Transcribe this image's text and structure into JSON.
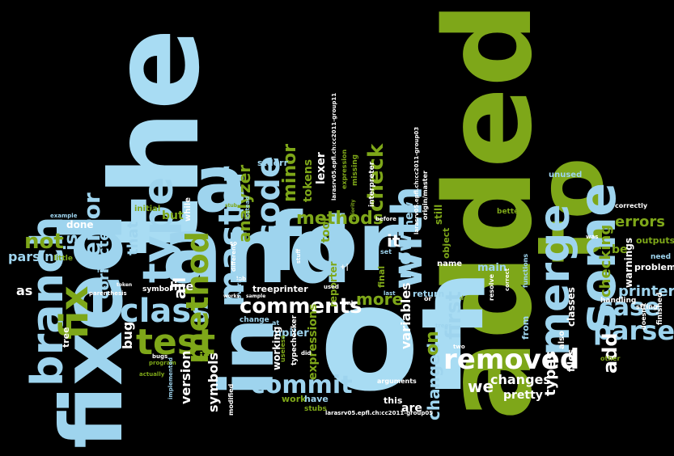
{
  "words": [
    {
      "text": "the",
      "color": "#a8dcf3"
    },
    {
      "text": "added",
      "color": "#7ea719"
    },
    {
      "text": "fixed",
      "color": "#9ed4ee"
    },
    {
      "text": "of",
      "color": "#a8dcf3"
    },
    {
      "text": "and",
      "color": "#9ed4ee"
    },
    {
      "text": "for",
      "color": "#9ed4ee"
    },
    {
      "text": "to",
      "color": "#7ea719"
    },
    {
      "text": "a",
      "color": "#9ed4ee"
    },
    {
      "text": "in",
      "color": "#9ed4ee"
    },
    {
      "text": "some",
      "color": "#9ed4ee"
    },
    {
      "text": "branch",
      "color": "#9ed4ee"
    },
    {
      "text": "merge",
      "color": "#9ed4ee"
    },
    {
      "text": "with",
      "color": "#9ed4ee"
    },
    {
      "text": "type",
      "color": "#9ed4ee"
    },
    {
      "text": "class",
      "color": "#9ed4ee"
    },
    {
      "text": "method",
      "color": "#7ea719"
    },
    {
      "text": "fix",
      "color": "#7ea719"
    },
    {
      "text": "master",
      "color": "#9ed4ee"
    },
    {
      "text": "test",
      "color": "#7ea719"
    },
    {
      "text": "code",
      "color": "#9ed4ee"
    },
    {
      "text": "comments",
      "color": "#ffffff"
    },
    {
      "text": "removed",
      "color": "#ffffff"
    },
    {
      "text": "parser",
      "color": "#9ed4ee"
    },
    {
      "text": "case",
      "color": "#9ed4ee"
    },
    {
      "text": "commit",
      "color": "#9ed4ee"
    },
    {
      "text": "error",
      "color": "#9ed4ee"
    },
    {
      "text": "not",
      "color": "#7ea719"
    },
    {
      "text": "is",
      "color": "#9ed4ee"
    },
    {
      "text": "methods",
      "color": "#7ea719"
    },
    {
      "text": "check",
      "color": "#7ea719"
    },
    {
      "text": "minor",
      "color": "#7ea719"
    },
    {
      "text": "analyzer",
      "color": "#7ea719"
    },
    {
      "text": "first",
      "color": "#9ed4ee"
    },
    {
      "text": "now",
      "color": "#9ed4ee"
    },
    {
      "text": "changed",
      "color": "#9ed4ee"
    },
    {
      "text": "errors",
      "color": "#7ea719"
    },
    {
      "text": "add",
      "color": "#ffffff"
    },
    {
      "text": "checking",
      "color": "#7ea719"
    },
    {
      "text": "more",
      "color": "#7ea719"
    },
    {
      "text": "printer",
      "color": "#9ed4ee"
    },
    {
      "text": "corrected",
      "color": "#9ed4ee"
    },
    {
      "text": "that",
      "color": "#9ed4ee"
    },
    {
      "text": "all",
      "color": "#ffffff"
    },
    {
      "text": "parsing",
      "color": "#9ed4ee"
    },
    {
      "text": "as",
      "color": "#ffffff"
    },
    {
      "text": "bug",
      "color": "#ffffff"
    },
    {
      "text": "version",
      "color": "#ffffff"
    },
    {
      "text": "symbols",
      "color": "#ffffff"
    },
    {
      "text": "line",
      "color": "#ffffff"
    },
    {
      "text": "if",
      "color": "#7ea719"
    },
    {
      "text": "on",
      "color": "#7ea719"
    },
    {
      "text": "it",
      "color": "#ffffff"
    },
    {
      "text": "we",
      "color": "#ffffff"
    },
    {
      "text": "types",
      "color": "#ffffff"
    },
    {
      "text": "changes",
      "color": "#ffffff"
    },
    {
      "text": "pretty",
      "color": "#ffffff"
    },
    {
      "text": "are",
      "color": "#ffffff"
    },
    {
      "text": "files",
      "color": "#ffffff"
    },
    {
      "text": "classes",
      "color": "#ffffff"
    },
    {
      "text": "be",
      "color": "#7ea719"
    },
    {
      "text": "warnings",
      "color": "#ffffff"
    },
    {
      "text": "problem",
      "color": "#ffffff"
    },
    {
      "text": "outputs",
      "color": "#7ea719"
    },
    {
      "text": "main",
      "color": "#9ed4ee"
    },
    {
      "text": "variables",
      "color": "#ffffff"
    },
    {
      "text": "expressions",
      "color": "#7ea719"
    },
    {
      "text": "lexer",
      "color": "#ffffff"
    },
    {
      "text": "tokens",
      "color": "#7ea719"
    },
    {
      "text": "tool",
      "color": "#7ea719"
    },
    {
      "text": "but",
      "color": "#7ea719"
    },
    {
      "text": "done",
      "color": "#ffffff"
    },
    {
      "text": "stderr",
      "color": "#9ed4ee"
    },
    {
      "text": "initial",
      "color": "#7ea719"
    },
    {
      "text": "compiler",
      "color": "#9ed4ee"
    },
    {
      "text": "treeprinter",
      "color": "#ffffff"
    },
    {
      "text": "working",
      "color": "#ffffff"
    },
    {
      "text": "work",
      "color": "#7ea719"
    },
    {
      "text": "have",
      "color": "#9ed4ee"
    },
    {
      "text": "this",
      "color": "#ffffff"
    },
    {
      "text": "reporter",
      "color": "#7ea719"
    },
    {
      "text": "new",
      "color": "#9ed4ee"
    },
    {
      "text": "still",
      "color": "#7ea719"
    },
    {
      "text": "object",
      "color": "#7ea719"
    },
    {
      "text": "return",
      "color": "#9ed4ee"
    },
    {
      "text": "name",
      "color": "#ffffff"
    },
    {
      "text": "final",
      "color": "#7ea719"
    },
    {
      "text": "tree",
      "color": "#ffffff"
    },
    {
      "text": "little",
      "color": "#7ea719"
    },
    {
      "text": "example",
      "color": "#9ed4ee"
    },
    {
      "text": "while",
      "color": "#ffffff"
    },
    {
      "text": "unused",
      "color": "#9ed4ee"
    },
    {
      "text": "correctly",
      "color": "#ffffff"
    },
    {
      "text": "better",
      "color": "#7ea719"
    },
    {
      "text": "need",
      "color": "#9ed4ee"
    },
    {
      "text": "string",
      "color": "#ffffff"
    },
    {
      "text": "finished",
      "color": "#ffffff"
    },
    {
      "text": "doesn't",
      "color": "#ffffff"
    },
    {
      "text": "handling",
      "color": "#ffffff"
    },
    {
      "text": "also",
      "color": "#ffffff"
    },
    {
      "text": "other",
      "color": "#7ea719"
    },
    {
      "text": "from",
      "color": "#9ed4ee"
    },
    {
      "text": "stubs",
      "color": "#7ea719"
    },
    {
      "text": "interpreter",
      "color": "#ffffff"
    },
    {
      "text": "expression",
      "color": "#7ea719"
    },
    {
      "text": "missing",
      "color": "#7ea719"
    },
    {
      "text": "origin/master",
      "color": "#ffffff"
    },
    {
      "text": "larasrv05.epfl.ch:cc2011-group11",
      "color": "#ffffff"
    },
    {
      "text": "larasrv05.epfl.ch:cc2011-group03",
      "color": "#ffffff"
    },
    {
      "text": "larasrv05.epfl.ch:cc2011-group05",
      "color": "#ffffff"
    },
    {
      "text": "arguments",
      "color": "#ffffff"
    },
    {
      "text": "typechecker",
      "color": "#ffffff"
    },
    {
      "text": "useless",
      "color": "#7ea719"
    },
    {
      "text": "change",
      "color": "#9ed4ee"
    },
    {
      "text": "modified",
      "color": "#ffffff"
    },
    {
      "text": "symbol",
      "color": "#ffffff"
    },
    {
      "text": "program",
      "color": "#7ea719"
    },
    {
      "text": "two",
      "color": "#ffffff"
    },
    {
      "text": "set",
      "color": "#9ed4ee"
    },
    {
      "text": "last",
      "color": "#9ed4ee"
    },
    {
      "text": "resolve",
      "color": "#ffffff"
    },
    {
      "text": "correct",
      "color": "#ffffff"
    },
    {
      "text": "functions",
      "color": "#9ed4ee"
    },
    {
      "text": "was",
      "color": "#ffffff"
    },
    {
      "text": "few",
      "color": "#9ed4ee"
    },
    {
      "text": "an",
      "color": "#9ed4ee"
    },
    {
      "text": "did",
      "color": "#ffffff"
    },
    {
      "text": "at",
      "color": "#9ed4ee"
    },
    {
      "text": "lab",
      "color": "#ffffff"
    },
    {
      "text": "only",
      "color": "#ffffff"
    },
    {
      "text": "don't",
      "color": "#7ea719"
    },
    {
      "text": "trees",
      "color": "#9ed4ee"
    },
    {
      "text": "or",
      "color": "#ffffff"
    },
    {
      "text": "before",
      "color": "#ffffff"
    },
    {
      "text": "overriding",
      "color": "#9ed4ee"
    },
    {
      "text": "instead",
      "color": "#9ed4ee"
    },
    {
      "text": "stuff",
      "color": "#ffffff"
    },
    {
      "text": "used",
      "color": "#ffffff"
    },
    {
      "text": "bugs",
      "color": "#ffffff"
    },
    {
      "text": "actually",
      "color": "#7ea719"
    },
    {
      "text": "implemented",
      "color": "#9ed4ee"
    },
    {
      "text": "token",
      "color": "#ffffff"
    },
    {
      "text": "parenthesis",
      "color": "#ffffff"
    },
    {
      "text": "different",
      "color": "#ffffff"
    },
    {
      "text": "so",
      "color": "#ffffff"
    },
    {
      "text": "works",
      "color": "#ffffff"
    },
    {
      "text": "sample",
      "color": "#ffffff"
    },
    {
      "text": "priority",
      "color": "#7ea719"
    },
    {
      "text": "stub",
      "color": "#7ea719"
    },
    {
      "text": "+|",
      "color": "#ffffff"
    }
  ]
}
